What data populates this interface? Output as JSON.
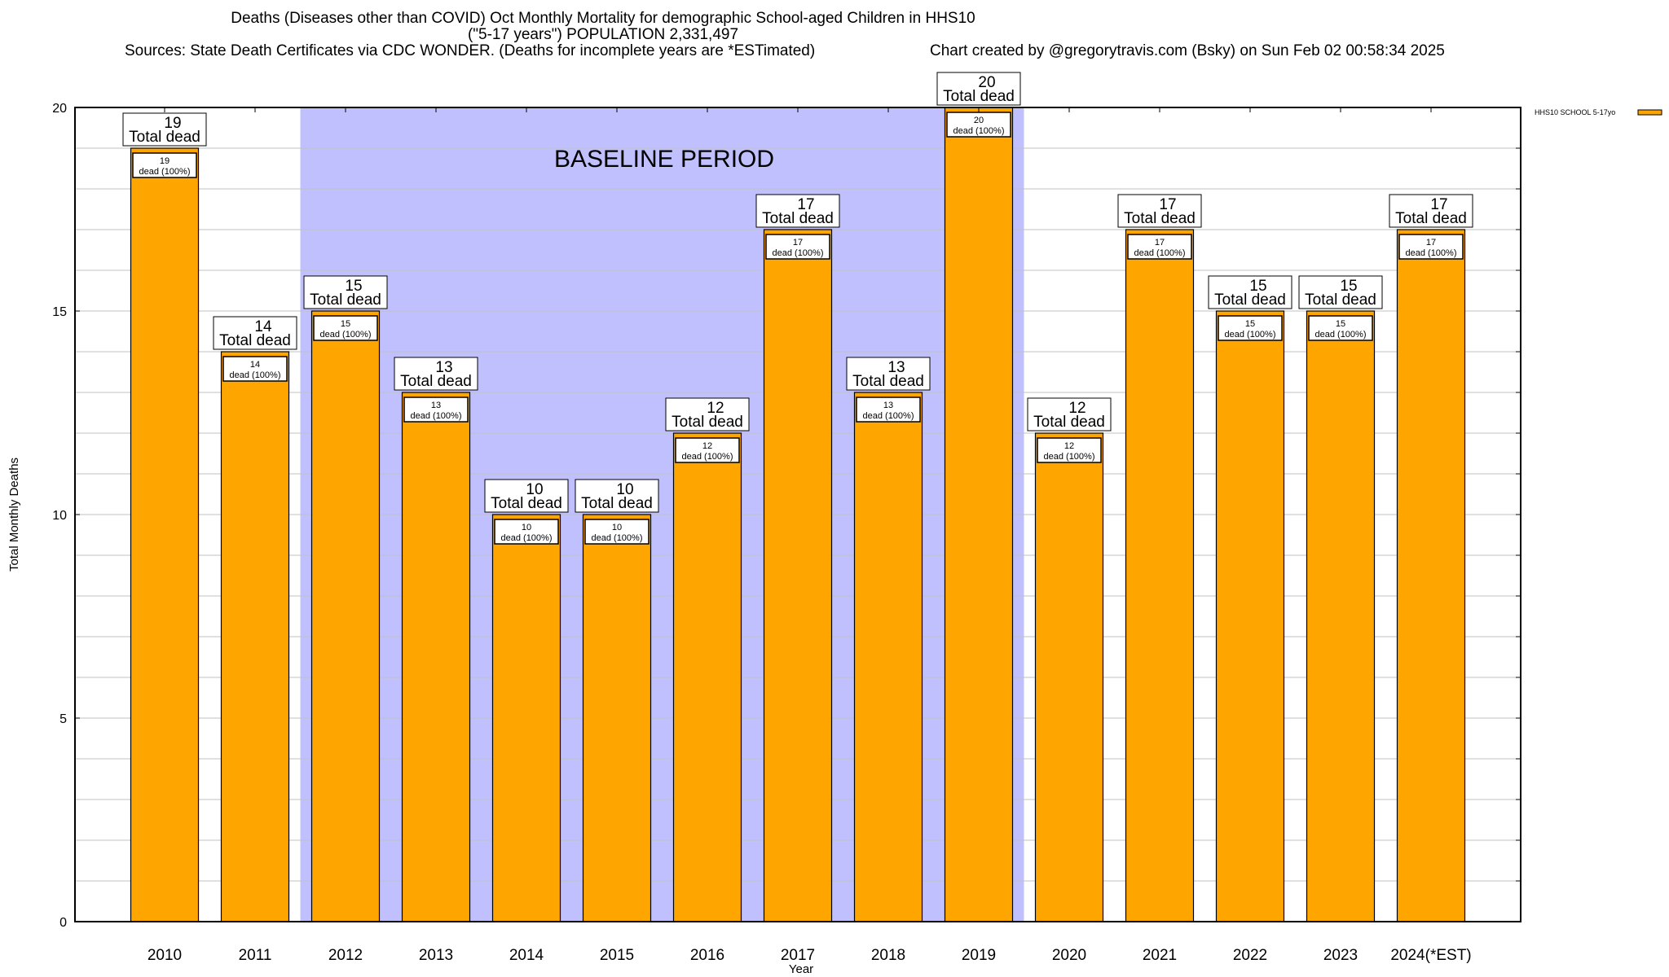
{
  "chart_data": {
    "type": "bar",
    "title": "Deaths (Diseases other than COVID) Oct Monthly Mortality for demographic School-aged Children in HHS10",
    "subtitle": "(\"5-17 years\") POPULATION 2,331,497",
    "sources": "Sources: State Death Certificates via CDC WONDER. (Deaths for incomplete years are *ESTimated)",
    "credit": "Chart created by @gregorytravis.com (Bsky) on Sun Feb 02 00:58:34 2025",
    "xlabel": "Year",
    "ylabel": "Total Monthly Deaths",
    "ylim": [
      0,
      20
    ],
    "yticks": [
      "0",
      "5",
      "10",
      "15",
      "20"
    ],
    "grid": true,
    "legend": {
      "position": "top-right",
      "label": "HHS10 SCHOOL 5-17yo"
    },
    "baseline_band": {
      "label": "BASELINE PERIOD",
      "from": "2012",
      "to": "2019"
    },
    "categories": [
      "2010",
      "2011",
      "2012",
      "2013",
      "2014",
      "2015",
      "2016",
      "2017",
      "2018",
      "2019",
      "2020",
      "2021",
      "2022",
      "2023",
      "2024(*EST)"
    ],
    "series": [
      {
        "name": "HHS10 SCHOOL 5-17yo",
        "values": [
          19,
          14,
          15,
          13,
          10,
          10,
          12,
          17,
          13,
          20,
          12,
          17,
          15,
          15,
          17
        ]
      }
    ],
    "total_label_suffix": "Total dead",
    "inner_label_suffix": "dead (100%)",
    "colors": {
      "bar": "#ffa500",
      "band": "#c0c0ff",
      "grid": "#c0c0c0",
      "axis": "#000000"
    }
  }
}
